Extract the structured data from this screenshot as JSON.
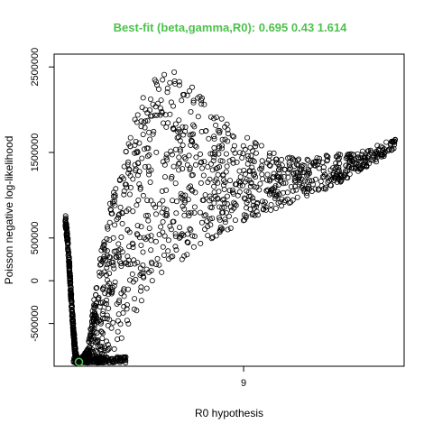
{
  "chart_data": {
    "type": "scatter",
    "title": "Best-fit (beta,gamma,R0): 0.695 0.43 1.614",
    "title_color": "#4cc24c",
    "xlabel": "R0 hypothesis",
    "ylabel": "Poisson negative log-likelihood",
    "xlim": [
      0.5,
      16.2
    ],
    "ylim": [
      -1000000,
      2650000
    ],
    "x_ticks": [
      {
        "value": 9,
        "label": "9"
      }
    ],
    "y_ticks": [
      {
        "value": -500000,
        "label": "-500000"
      },
      {
        "value": 0,
        "label": "0"
      },
      {
        "value": 500000,
        "label": "500000"
      },
      {
        "value": 1500000,
        "label": "1500000"
      },
      {
        "value": 2500000,
        "label": "2500000"
      }
    ],
    "point_color": "#000000",
    "best_fit": {
      "x": 1.614,
      "y": -950000,
      "color": "#4cc24c"
    },
    "grid": false,
    "legend": "none",
    "note_series": "Black open circles: many sampled hypotheses; envelope data points below.",
    "envelope": {
      "left_branch": {
        "x": [
          1.0,
          1.05,
          1.1,
          1.15,
          1.2,
          1.25,
          1.3,
          1.35,
          1.4,
          1.45,
          1.5,
          1.55,
          1.614
        ],
        "upper": [
          780000,
          700000,
          560000,
          400000,
          180000,
          -50000,
          -250000,
          -450000,
          -620000,
          -760000,
          -860000,
          -920000,
          -950000
        ]
      },
      "right_region": {
        "x": [
          1.614,
          2.0,
          2.5,
          3.0,
          3.5,
          4.0,
          4.5,
          5.0,
          6.0,
          7.0,
          8.0,
          9.0,
          10.0,
          11.0,
          12.0,
          13.0,
          14.0,
          15.0,
          15.8
        ],
        "lower": [
          -950000,
          -950000,
          -940000,
          -880000,
          -700000,
          -450000,
          -200000,
          0,
          200000,
          400000,
          550000,
          700000,
          800000,
          900000,
          1000000,
          1100000,
          1250000,
          1400000,
          1550000
        ],
        "upper": [
          -950000,
          -800000,
          200000,
          900000,
          1400000,
          1800000,
          2150000,
          2400000,
          2480000,
          2200000,
          1900000,
          1700000,
          1550000,
          1450000,
          1450000,
          1480000,
          1500000,
          1550000,
          1650000
        ]
      }
    }
  }
}
